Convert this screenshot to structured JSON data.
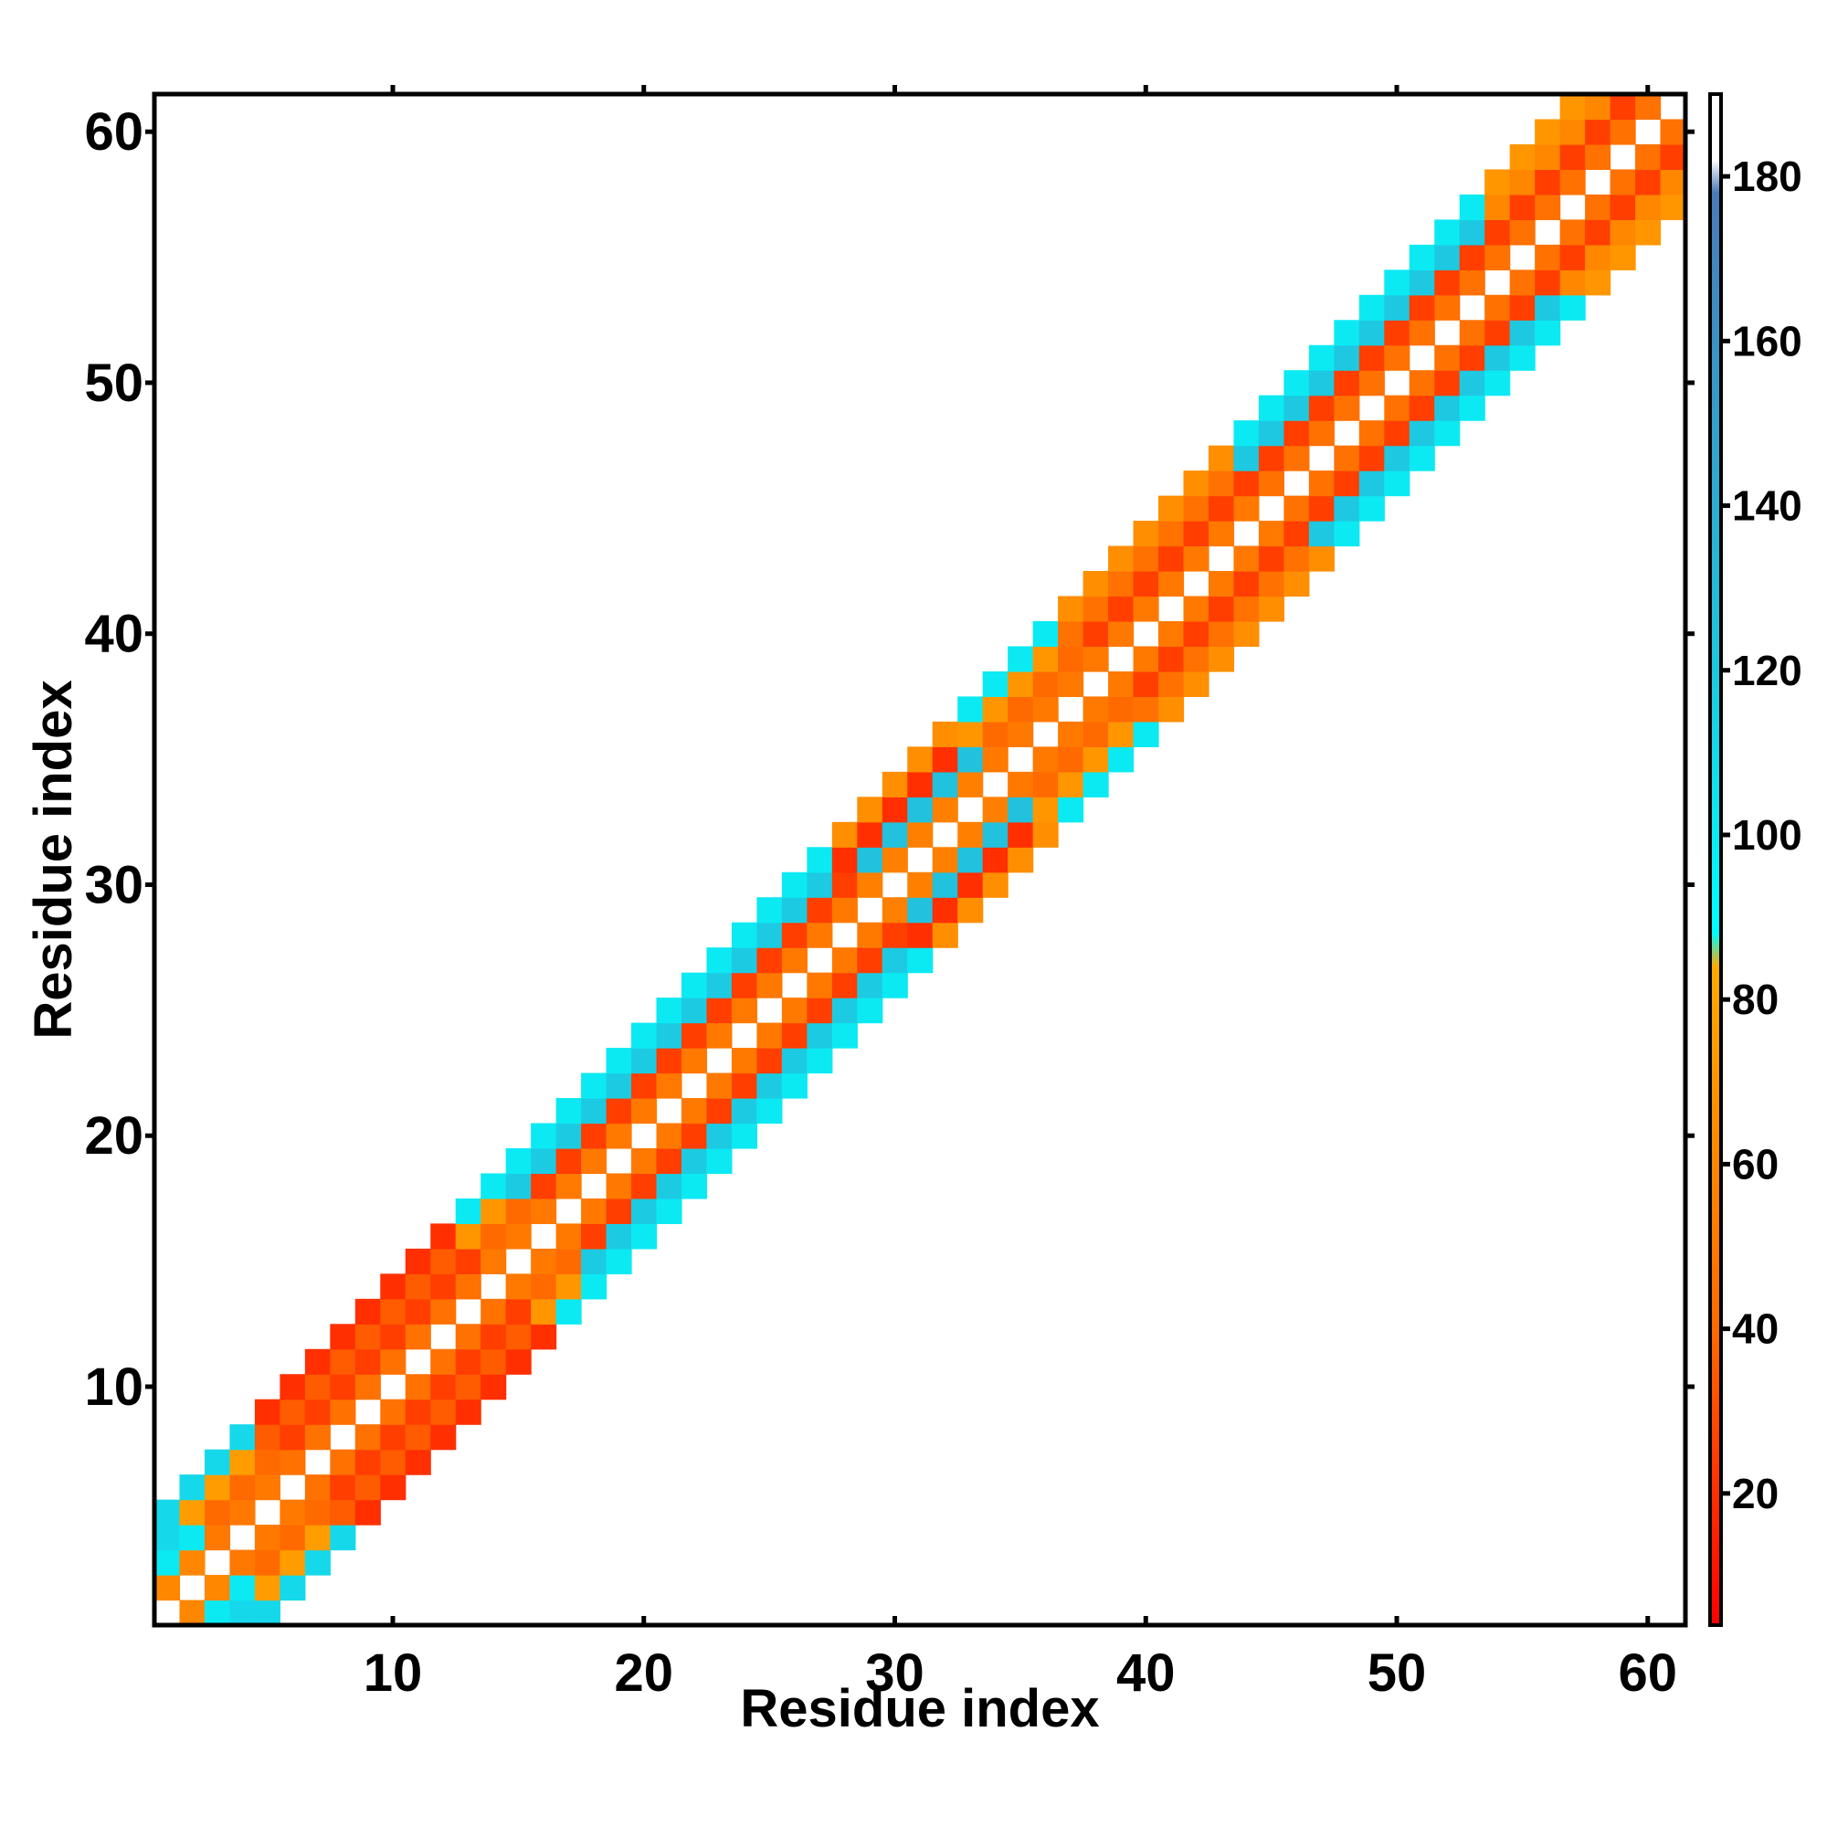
{
  "chart_data": {
    "type": "heatmap",
    "title": "",
    "xlabel": "Residue index",
    "ylabel": "Residue index",
    "xlim": [
      0.5,
      61.5
    ],
    "ylim": [
      0.5,
      61.5
    ],
    "x_ticks": [
      10,
      20,
      30,
      40,
      50,
      60
    ],
    "y_ticks": [
      10,
      20,
      30,
      40,
      50,
      60
    ],
    "x_tick_labels": [
      "10",
      "20",
      "30",
      "40",
      "50",
      "60"
    ],
    "y_tick_labels": [
      "10",
      "20",
      "30",
      "40",
      "50",
      "60"
    ],
    "grid": false,
    "colorbar": {
      "range": [
        4,
        190
      ],
      "ticks": [
        20,
        40,
        60,
        80,
        100,
        120,
        140,
        160,
        180
      ],
      "tick_labels": [
        "20",
        "40",
        "60",
        "80",
        "100",
        "120",
        "140",
        "160",
        "180"
      ],
      "stops": [
        {
          "value": 4,
          "color": "#ff0000"
        },
        {
          "value": 40,
          "color": "#ff6a00"
        },
        {
          "value": 84,
          "color": "#ffaa00"
        },
        {
          "value": 88,
          "color": "#00ffff"
        },
        {
          "value": 120,
          "color": "#1ec8e0"
        },
        {
          "value": 178,
          "color": "#4a7ab8"
        },
        {
          "value": 182,
          "color": "#ffffff"
        },
        {
          "value": 190,
          "color": "#ffffff"
        }
      ]
    },
    "band_half_width": 4,
    "region_profiles": [
      {
        "from": 1,
        "to": 3,
        "values": [
          60,
          100,
          110,
          110
        ]
      },
      {
        "from": 4,
        "to": 6,
        "values": [
          50,
          40,
          75,
          110
        ]
      },
      {
        "from": 7,
        "to": 14,
        "values": [
          45,
          25,
          35,
          20
        ]
      },
      {
        "from": 15,
        "to": 16,
        "values": [
          50,
          40,
          70,
          100
        ]
      },
      {
        "from": 17,
        "to": 29,
        "values": [
          50,
          25,
          118,
          100
        ]
      },
      {
        "from": 30,
        "to": 34,
        "values": [
          55,
          125,
          20,
          65
        ]
      },
      {
        "from": 35,
        "to": 38,
        "values": [
          50,
          40,
          70,
          100
        ]
      },
      {
        "from": 39,
        "to": 45,
        "values": [
          50,
          25,
          45,
          65
        ]
      },
      {
        "from": 46,
        "to": 55,
        "values": [
          45,
          25,
          120,
          100
        ]
      },
      {
        "from": 56,
        "to": 61,
        "values": [
          45,
          25,
          60,
          70
        ]
      }
    ]
  }
}
